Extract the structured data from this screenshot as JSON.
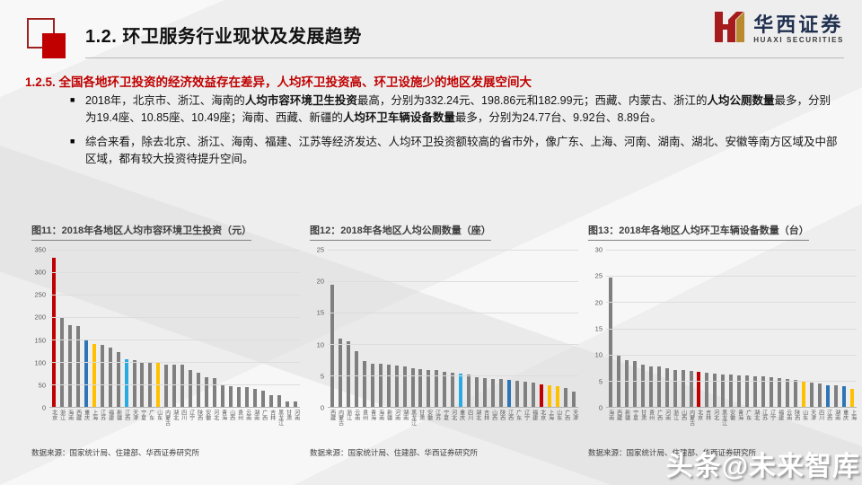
{
  "header": {
    "title": "1.2. 环卫服务行业现状及发展趋势",
    "logo_cn": "华西证券",
    "logo_en": "HUAXI SECURITIES"
  },
  "section_heading": "1.2.5. 全国各地环卫投资的经济效益存在差异，人均环卫投资高、环卫设施少的地区发展空间大",
  "bullets": [
    {
      "marker": "■",
      "segments": [
        {
          "t": "2018年，北京市、浙江、海南的",
          "b": false
        },
        {
          "t": "人均市容环境卫生投资",
          "b": true
        },
        {
          "t": "最高，分别为332.24元、198.86元和182.99元；西藏、内蒙古、浙江的",
          "b": false
        },
        {
          "t": "人均公厕数量",
          "b": true
        },
        {
          "t": "最多，分别为19.4座、10.85座、10.49座；海南、西藏、新疆的",
          "b": false
        },
        {
          "t": "人均环卫车辆设备数量",
          "b": true
        },
        {
          "t": "最多，分别为24.77台、9.92台、8.89台。",
          "b": false
        }
      ]
    },
    {
      "marker": "■",
      "segments": [
        {
          "t": "综合来看，除去北京、浙江、海南、福建、江苏等经济发达、人均环卫投资额较高的省市外，像广东、上海、河南、湖南、湖北、安徽等南方区域及中部区域，都有较大投资待提升空间。",
          "b": false
        }
      ]
    }
  ],
  "colors": {
    "accent_red": "#c00000",
    "bar_gray": "#7f7f7f",
    "bar_blue": "#2e75b6",
    "bar_lightblue": "#29abe2",
    "bar_orange": "#ffc000"
  },
  "charts": [
    {
      "title": "图11：2018年各地区人均市容环境卫生投资（元）",
      "source": "数据来源：国家统计局、住建部、华西证券研究所",
      "chart_data": {
        "type": "bar",
        "ylabel": "元",
        "ylim": [
          0,
          350
        ],
        "ystep": 50,
        "grid": true,
        "bar_color": "#7f7f7f",
        "categories": [
          "北京",
          "浙江",
          "海南",
          "西藏",
          "重庆",
          "上海",
          "江苏",
          "福建",
          "新疆",
          "江西",
          "天津",
          "宁夏",
          "广东",
          "山东",
          "内蒙古",
          "湖北",
          "四川",
          "辽宁",
          "陕西",
          "安徽",
          "河北",
          "青海",
          "山西",
          "贵州",
          "云南",
          "湖南",
          "广西",
          "吉林",
          "黑龙江",
          "甘肃",
          "河南"
        ],
        "values": [
          332.24,
          198.86,
          182.99,
          180,
          149,
          140,
          138,
          133,
          123,
          107,
          104,
          101,
          100.5,
          100,
          95,
          94,
          94,
          83,
          76,
          67,
          65,
          48,
          45.5,
          45,
          45,
          40,
          37,
          27,
          26,
          12,
          12
        ],
        "highlights": {
          "0": "#c00000",
          "4": "#2e75b6",
          "5": "#ffc000",
          "9": "#29abe2",
          "13": "#ffc000"
        }
      }
    },
    {
      "title": "图12：2018年各地区人均公厕数量（座）",
      "source": "数据来源：国家统计局、住建部、华西证券研究所",
      "chart_data": {
        "type": "bar",
        "ylabel": "座",
        "ylim": [
          0,
          25
        ],
        "ystep": 5,
        "grid": true,
        "bar_color": "#7f7f7f",
        "categories": [
          "西藏",
          "内蒙古",
          "浙江",
          "云南",
          "贵州",
          "青海",
          "海南",
          "新疆",
          "河南",
          "湖南",
          "黑龙江",
          "甘肃",
          "安徽",
          "江苏",
          "宁夏",
          "河北",
          "重庆",
          "四川",
          "湖北",
          "吉林",
          "山西",
          "陕西",
          "江西",
          "广东",
          "辽宁",
          "福建",
          "北京",
          "上海",
          "山东",
          "广西",
          "天津"
        ],
        "values": [
          19.4,
          10.85,
          10.49,
          8.8,
          7.3,
          6.9,
          6.8,
          6.7,
          6.6,
          6.4,
          6.2,
          6.0,
          5.9,
          5.8,
          5.6,
          5.5,
          5.3,
          5.1,
          4.7,
          4.6,
          4.5,
          4.4,
          4.3,
          4.1,
          4.0,
          3.9,
          3.6,
          3.4,
          3.3,
          3.0,
          2.5
        ],
        "highlights": {
          "16": "#29abe2",
          "22": "#2e75b6",
          "26": "#c00000",
          "27": "#ffc000",
          "28": "#ffc000"
        }
      }
    },
    {
      "title": "图13：2018年各地区人均环卫车辆设备数量（台）",
      "source": "数据来源：国家统计局、住建部、华西证券研究所",
      "chart_data": {
        "type": "bar",
        "ylabel": "台",
        "ylim": [
          0,
          30
        ],
        "ystep": 5,
        "grid": true,
        "bar_color": "#7f7f7f",
        "categories": [
          "海南",
          "西藏",
          "新疆",
          "宁夏",
          "甘肃",
          "贵州",
          "广西",
          "河南",
          "浙江",
          "山西",
          "内蒙古",
          "北京",
          "吉林",
          "河北",
          "黑龙江",
          "安徽",
          "青海",
          "广东",
          "湖北",
          "江苏",
          "辽宁",
          "福建",
          "云南",
          "陕西",
          "山东",
          "天津",
          "四川",
          "江西",
          "湖南",
          "重庆",
          "上海"
        ],
        "values": [
          24.77,
          9.92,
          8.89,
          8.7,
          8.1,
          7.8,
          7.7,
          7.3,
          7.1,
          7.0,
          6.9,
          6.7,
          6.6,
          6.4,
          6.2,
          6.1,
          6.0,
          6.0,
          5.9,
          5.8,
          5.6,
          5.5,
          5.4,
          5.2,
          5.0,
          4.6,
          4.4,
          4.2,
          4.1,
          4.0,
          3.5
        ],
        "highlights": {
          "11": "#c00000",
          "24": "#ffc000",
          "27": "#2e75b6",
          "29": "#2e75b6",
          "30": "#ffc000"
        }
      }
    }
  ],
  "watermark": "头条@未来智库"
}
